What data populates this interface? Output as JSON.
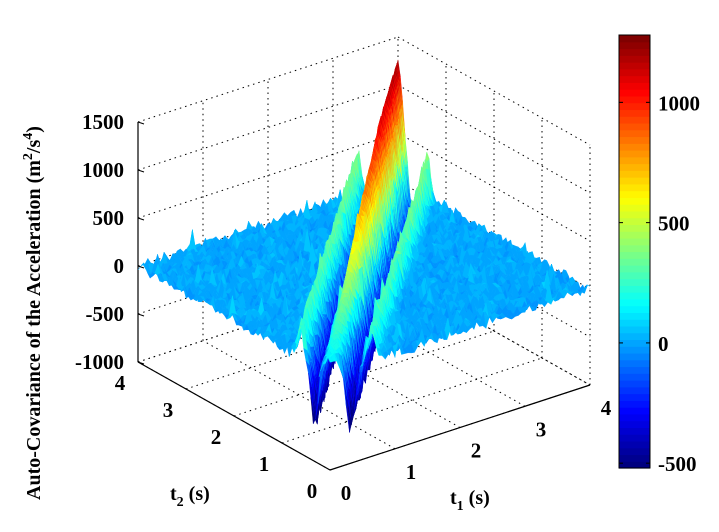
{
  "chart_data": {
    "type": "surface",
    "title": "",
    "xlabel": {
      "base": "t",
      "sub": "1",
      "unit": " (s)"
    },
    "ylabel": {
      "base": "t",
      "sub": "2",
      "unit": " (s)"
    },
    "zlabel": {
      "p1": "Auto-Covariance of the Acceleration (m",
      "sup1": "2",
      "p2": "/s",
      "sup2": "4",
      "p3": ")"
    },
    "xlim": [
      0,
      4
    ],
    "ylim": [
      0,
      4
    ],
    "zlim": [
      -1000,
      1500
    ],
    "xticks": [
      "0",
      "1",
      "2",
      "3",
      "4"
    ],
    "yticks": [
      "0",
      "1",
      "2",
      "3",
      "4"
    ],
    "zticks": [
      "-1000",
      "-500",
      "0",
      "500",
      "1000",
      "1500"
    ],
    "grid": true,
    "colormap": "jet",
    "colorbar": {
      "location": "right",
      "clim": [
        -520,
        1280
      ],
      "ticks": [
        "-500",
        "0",
        "500",
        "1000"
      ]
    },
    "diagonal_peak": {
      "t": [
        0,
        1,
        2,
        3,
        4
      ],
      "value": [
        150,
        450,
        850,
        1150,
        1250
      ]
    },
    "side_ridge_value": 450,
    "trough_value": -650
  }
}
